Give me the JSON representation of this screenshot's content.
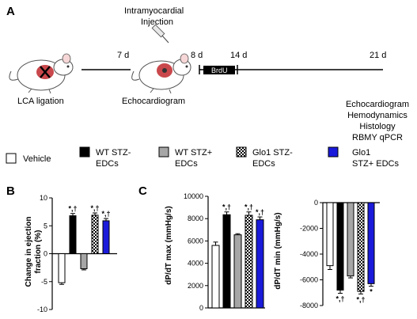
{
  "panels": {
    "a": "A",
    "b": "B",
    "c": "C"
  },
  "timeline": {
    "injection_line1": "Intramyocardial",
    "injection_line2": "Injection",
    "day_7": "7 d",
    "day_8": "8 d",
    "day_14": "14 d",
    "day_21": "21 d",
    "brdu": "BrdU",
    "lca_ligation": "LCA ligation",
    "echo_mid": "Echocardiogram",
    "endpoints": [
      "Echocardiogram",
      "Hemodynamics",
      "Histology",
      "RBMY qPCR"
    ]
  },
  "legend": [
    {
      "line1": "Vehicle",
      "line2": "",
      "fill": "white"
    },
    {
      "line1": "WT STZ-",
      "line2": "EDCs",
      "fill": "black"
    },
    {
      "line1": "WT STZ+",
      "line2": "EDCs",
      "fill": "gray"
    },
    {
      "line1": "Glo1 STZ-",
      "line2": "EDCs",
      "fill": "checker"
    },
    {
      "line1": "Glo1",
      "line2": "STZ+ EDCs",
      "fill": "blue"
    }
  ],
  "colors": {
    "white": "#ffffff",
    "black": "#000000",
    "gray": "#a6a6a6",
    "blue": "#1a1adb",
    "checker_dark": "#000000",
    "mouse_red": "#c0282d"
  },
  "chart_data": [
    {
      "id": "ef",
      "type": "bar",
      "title": "",
      "xlabel": "",
      "ylabel_line1": "Change in ejection",
      "ylabel_line2": "fraction (%)",
      "ylim": [
        -10,
        10
      ],
      "yticks": [
        -10,
        -5,
        0,
        5,
        10
      ],
      "categories": [
        "Vehicle",
        "WT STZ- EDCs",
        "WT STZ+ EDCs",
        "Glo1 STZ- EDCs",
        "Glo1 STZ+ EDCs"
      ],
      "values": [
        -5.2,
        6.8,
        -2.7,
        6.9,
        5.9
      ],
      "errors": [
        0.3,
        0.4,
        0.2,
        0.4,
        0.4
      ],
      "significance": [
        "",
        "*,†",
        "",
        "*,†",
        "*,†"
      ]
    },
    {
      "id": "dpdt_max",
      "type": "bar",
      "title": "",
      "xlabel": "",
      "ylabel": "dP/dT max (mmHg/s)",
      "ylim": [
        0,
        10000
      ],
      "yticks": [
        0,
        2000,
        4000,
        6000,
        8000,
        10000
      ],
      "categories": [
        "Vehicle",
        "WT STZ- EDCs",
        "WT STZ+ EDCs",
        "Glo1 STZ- EDCs",
        "Glo1 STZ+ EDCs"
      ],
      "values": [
        5600,
        8350,
        6550,
        8300,
        7900
      ],
      "errors": [
        300,
        250,
        100,
        300,
        250
      ],
      "significance": [
        "",
        "*,†",
        "",
        "*,†",
        "*,†"
      ]
    },
    {
      "id": "dpdt_min",
      "type": "bar",
      "title": "",
      "xlabel": "",
      "ylabel": "dP/dT min (mmHg/s)",
      "ylim": [
        -8000,
        0
      ],
      "yticks": [
        -8000,
        -6000,
        -4000,
        -2000,
        0
      ],
      "categories": [
        "Vehicle",
        "WT STZ- EDCs",
        "WT STZ+ EDCs",
        "Glo1 STZ- EDCs",
        "Glo1 STZ+ EDCs"
      ],
      "values": [
        -4900,
        -6800,
        -5700,
        -6900,
        -6300
      ],
      "errors": [
        300,
        250,
        150,
        200,
        200
      ],
      "significance": [
        "",
        "*,†",
        "",
        "*,†",
        "*"
      ]
    }
  ]
}
